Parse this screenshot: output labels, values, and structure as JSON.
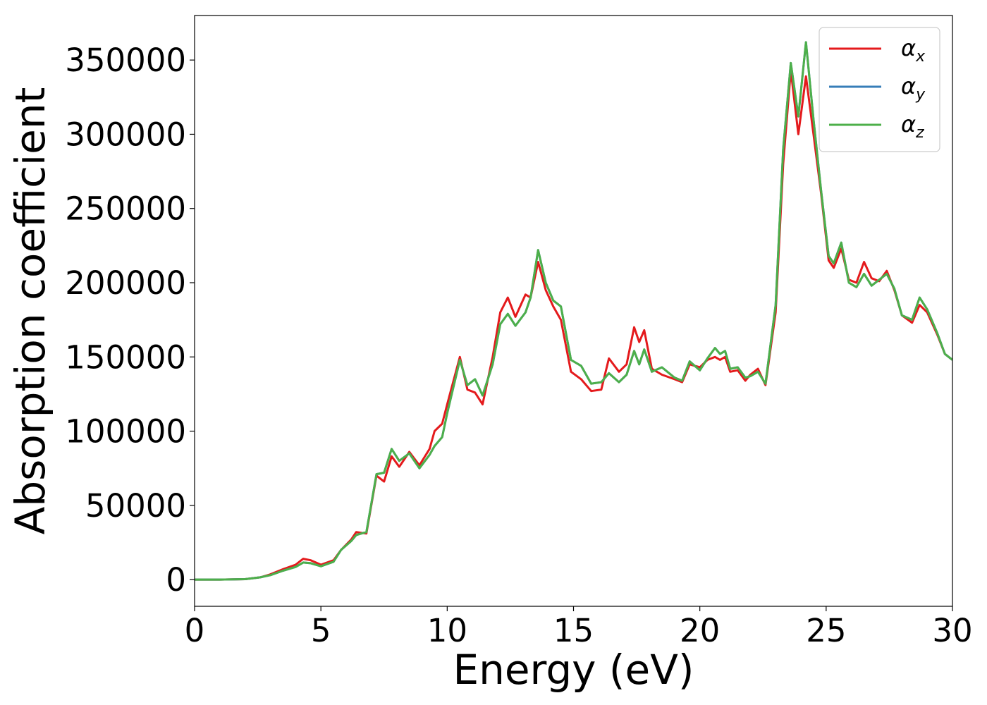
{
  "chart_data": {
    "type": "line",
    "xlabel": "Energy (eV)",
    "ylabel": "Absorption coefficient",
    "xlim": [
      0,
      30
    ],
    "ylim": [
      -18000,
      380000
    ],
    "x_ticks": [
      0,
      5,
      10,
      15,
      20,
      25,
      30
    ],
    "y_ticks": [
      0,
      50000,
      100000,
      150000,
      200000,
      250000,
      300000,
      350000
    ],
    "grid": false,
    "legend_position": "top-right",
    "series": [
      {
        "name": "α",
        "subscript": "x",
        "color": "#e41a1c",
        "points": [
          [
            0,
            0
          ],
          [
            1,
            0
          ],
          [
            2,
            300
          ],
          [
            2.6,
            1500
          ],
          [
            3,
            3500
          ],
          [
            3.5,
            7000
          ],
          [
            4,
            10000
          ],
          [
            4.3,
            14000
          ],
          [
            4.6,
            13000
          ],
          [
            5,
            10000
          ],
          [
            5.5,
            13000
          ],
          [
            5.8,
            20000
          ],
          [
            6.2,
            27000
          ],
          [
            6.4,
            32000
          ],
          [
            6.8,
            31000
          ],
          [
            7.2,
            70000
          ],
          [
            7.5,
            66000
          ],
          [
            7.8,
            83000
          ],
          [
            8.1,
            76000
          ],
          [
            8.5,
            86000
          ],
          [
            8.9,
            77000
          ],
          [
            9.3,
            88000
          ],
          [
            9.5,
            100000
          ],
          [
            9.8,
            105000
          ],
          [
            10,
            118000
          ],
          [
            10.5,
            150000
          ],
          [
            10.8,
            128000
          ],
          [
            11.1,
            126000
          ],
          [
            11.4,
            118000
          ],
          [
            11.8,
            150000
          ],
          [
            12.1,
            180000
          ],
          [
            12.4,
            190000
          ],
          [
            12.7,
            177000
          ],
          [
            13.1,
            192000
          ],
          [
            13.3,
            190000
          ],
          [
            13.6,
            214000
          ],
          [
            13.9,
            195000
          ],
          [
            14.2,
            184000
          ],
          [
            14.5,
            175000
          ],
          [
            14.9,
            140000
          ],
          [
            15.3,
            135000
          ],
          [
            15.7,
            127000
          ],
          [
            16.1,
            128000
          ],
          [
            16.4,
            149000
          ],
          [
            16.8,
            140000
          ],
          [
            17.1,
            145000
          ],
          [
            17.4,
            170000
          ],
          [
            17.6,
            160000
          ],
          [
            17.8,
            168000
          ],
          [
            18.1,
            142000
          ],
          [
            18.5,
            138000
          ],
          [
            19,
            135000
          ],
          [
            19.3,
            133000
          ],
          [
            19.6,
            145000
          ],
          [
            20,
            143000
          ],
          [
            20.3,
            148000
          ],
          [
            20.6,
            150000
          ],
          [
            20.8,
            148000
          ],
          [
            21,
            150000
          ],
          [
            21.2,
            140000
          ],
          [
            21.5,
            141000
          ],
          [
            21.8,
            134000
          ],
          [
            22,
            138000
          ],
          [
            22.3,
            142000
          ],
          [
            22.6,
            131000
          ],
          [
            23,
            180000
          ],
          [
            23.3,
            280000
          ],
          [
            23.6,
            343000
          ],
          [
            23.9,
            300000
          ],
          [
            24.2,
            339000
          ],
          [
            24.5,
            300000
          ],
          [
            24.8,
            260000
          ],
          [
            25.1,
            215000
          ],
          [
            25.3,
            210000
          ],
          [
            25.6,
            223000
          ],
          [
            25.9,
            202000
          ],
          [
            26.2,
            200000
          ],
          [
            26.5,
            214000
          ],
          [
            26.8,
            203000
          ],
          [
            27.1,
            201000
          ],
          [
            27.4,
            208000
          ],
          [
            27.7,
            195000
          ],
          [
            28,
            178000
          ],
          [
            28.4,
            173000
          ],
          [
            28.7,
            185000
          ],
          [
            29,
            180000
          ],
          [
            29.4,
            165000
          ],
          [
            29.7,
            152000
          ],
          [
            30,
            148000
          ]
        ]
      },
      {
        "name": "α",
        "subscript": "y",
        "color": "#377eb8",
        "points": [
          [
            0,
            0
          ],
          [
            1,
            0
          ],
          [
            2,
            300
          ],
          [
            2.6,
            1500
          ],
          [
            3,
            3000
          ],
          [
            3.5,
            6000
          ],
          [
            4,
            8500
          ],
          [
            4.3,
            11500
          ],
          [
            4.6,
            11000
          ],
          [
            5,
            9000
          ],
          [
            5.5,
            12000
          ],
          [
            5.8,
            20000
          ],
          [
            6.2,
            26000
          ],
          [
            6.4,
            30000
          ],
          [
            6.8,
            32000
          ],
          [
            7.2,
            71000
          ],
          [
            7.5,
            72000
          ],
          [
            7.8,
            88000
          ],
          [
            8.1,
            80000
          ],
          [
            8.5,
            85000
          ],
          [
            8.9,
            75000
          ],
          [
            9.3,
            84000
          ],
          [
            9.5,
            90000
          ],
          [
            9.8,
            96000
          ],
          [
            10,
            112000
          ],
          [
            10.5,
            148000
          ],
          [
            10.8,
            131000
          ],
          [
            11.1,
            135000
          ],
          [
            11.4,
            124000
          ],
          [
            11.8,
            145000
          ],
          [
            12.1,
            172000
          ],
          [
            12.4,
            179000
          ],
          [
            12.7,
            171000
          ],
          [
            13.1,
            180000
          ],
          [
            13.3,
            190000
          ],
          [
            13.6,
            222000
          ],
          [
            13.9,
            200000
          ],
          [
            14.2,
            188000
          ],
          [
            14.5,
            184000
          ],
          [
            14.9,
            148000
          ],
          [
            15.3,
            144000
          ],
          [
            15.7,
            132000
          ],
          [
            16.1,
            133000
          ],
          [
            16.4,
            139000
          ],
          [
            16.8,
            133000
          ],
          [
            17.1,
            138000
          ],
          [
            17.4,
            154000
          ],
          [
            17.6,
            145000
          ],
          [
            17.8,
            155000
          ],
          [
            18.1,
            140000
          ],
          [
            18.5,
            143000
          ],
          [
            19,
            136000
          ],
          [
            19.3,
            134000
          ],
          [
            19.6,
            147000
          ],
          [
            20,
            141000
          ],
          [
            20.3,
            149000
          ],
          [
            20.6,
            156000
          ],
          [
            20.8,
            152000
          ],
          [
            21,
            154000
          ],
          [
            21.2,
            142000
          ],
          [
            21.5,
            143000
          ],
          [
            21.8,
            136000
          ],
          [
            22,
            137000
          ],
          [
            22.3,
            140000
          ],
          [
            22.6,
            132000
          ],
          [
            23,
            185000
          ],
          [
            23.3,
            290000
          ],
          [
            23.6,
            348000
          ],
          [
            23.9,
            312000
          ],
          [
            24.2,
            362000
          ],
          [
            24.5,
            310000
          ],
          [
            24.8,
            262000
          ],
          [
            25.1,
            218000
          ],
          [
            25.3,
            213000
          ],
          [
            25.6,
            227000
          ],
          [
            25.9,
            200000
          ],
          [
            26.2,
            197000
          ],
          [
            26.5,
            206000
          ],
          [
            26.8,
            198000
          ],
          [
            27.1,
            202000
          ],
          [
            27.4,
            206000
          ],
          [
            27.7,
            196000
          ],
          [
            28,
            178000
          ],
          [
            28.4,
            175000
          ],
          [
            28.7,
            190000
          ],
          [
            29,
            182000
          ],
          [
            29.4,
            166000
          ],
          [
            29.7,
            152000
          ],
          [
            30,
            148000
          ]
        ]
      },
      {
        "name": "α",
        "subscript": "z",
        "color": "#4daf4a",
        "points": [
          [
            0,
            0
          ],
          [
            1,
            0
          ],
          [
            2,
            300
          ],
          [
            2.6,
            1500
          ],
          [
            3,
            3000
          ],
          [
            3.5,
            6000
          ],
          [
            4,
            8500
          ],
          [
            4.3,
            11500
          ],
          [
            4.6,
            11000
          ],
          [
            5,
            9000
          ],
          [
            5.5,
            12000
          ],
          [
            5.8,
            20000
          ],
          [
            6.2,
            26000
          ],
          [
            6.4,
            30000
          ],
          [
            6.8,
            32000
          ],
          [
            7.2,
            71000
          ],
          [
            7.5,
            72000
          ],
          [
            7.8,
            88000
          ],
          [
            8.1,
            80000
          ],
          [
            8.5,
            85000
          ],
          [
            8.9,
            75000
          ],
          [
            9.3,
            84000
          ],
          [
            9.5,
            90000
          ],
          [
            9.8,
            96000
          ],
          [
            10,
            112000
          ],
          [
            10.5,
            148000
          ],
          [
            10.8,
            131000
          ],
          [
            11.1,
            135000
          ],
          [
            11.4,
            124000
          ],
          [
            11.8,
            145000
          ],
          [
            12.1,
            172000
          ],
          [
            12.4,
            179000
          ],
          [
            12.7,
            171000
          ],
          [
            13.1,
            180000
          ],
          [
            13.3,
            190000
          ],
          [
            13.6,
            222000
          ],
          [
            13.9,
            200000
          ],
          [
            14.2,
            188000
          ],
          [
            14.5,
            184000
          ],
          [
            14.9,
            148000
          ],
          [
            15.3,
            144000
          ],
          [
            15.7,
            132000
          ],
          [
            16.1,
            133000
          ],
          [
            16.4,
            139000
          ],
          [
            16.8,
            133000
          ],
          [
            17.1,
            138000
          ],
          [
            17.4,
            154000
          ],
          [
            17.6,
            145000
          ],
          [
            17.8,
            155000
          ],
          [
            18.1,
            140000
          ],
          [
            18.5,
            143000
          ],
          [
            19,
            136000
          ],
          [
            19.3,
            134000
          ],
          [
            19.6,
            147000
          ],
          [
            20,
            141000
          ],
          [
            20.3,
            149000
          ],
          [
            20.6,
            156000
          ],
          [
            20.8,
            152000
          ],
          [
            21,
            154000
          ],
          [
            21.2,
            142000
          ],
          [
            21.5,
            143000
          ],
          [
            21.8,
            136000
          ],
          [
            22,
            137000
          ],
          [
            22.3,
            140000
          ],
          [
            22.6,
            132000
          ],
          [
            23,
            185000
          ],
          [
            23.3,
            290000
          ],
          [
            23.6,
            348000
          ],
          [
            23.9,
            312000
          ],
          [
            24.2,
            362000
          ],
          [
            24.5,
            310000
          ],
          [
            24.8,
            262000
          ],
          [
            25.1,
            218000
          ],
          [
            25.3,
            213000
          ],
          [
            25.6,
            227000
          ],
          [
            25.9,
            200000
          ],
          [
            26.2,
            197000
          ],
          [
            26.5,
            206000
          ],
          [
            26.8,
            198000
          ],
          [
            27.1,
            202000
          ],
          [
            27.4,
            206000
          ],
          [
            27.7,
            196000
          ],
          [
            28,
            178000
          ],
          [
            28.4,
            175000
          ],
          [
            28.7,
            190000
          ],
          [
            29,
            182000
          ],
          [
            29.4,
            166000
          ],
          [
            29.7,
            152000
          ],
          [
            30,
            148000
          ]
        ]
      }
    ]
  }
}
